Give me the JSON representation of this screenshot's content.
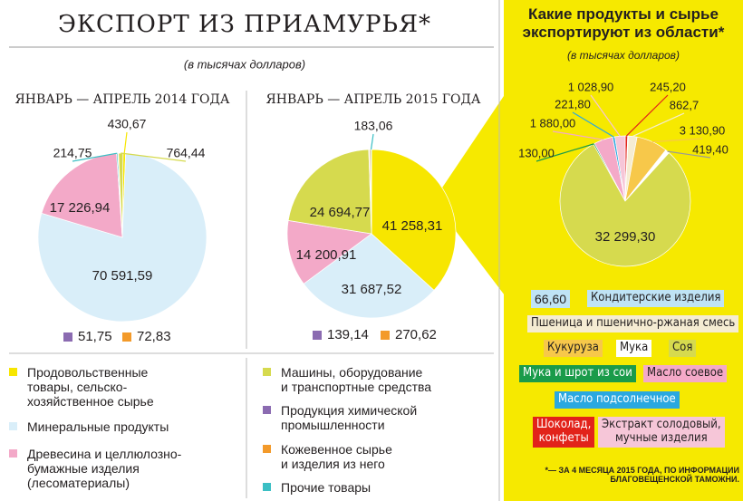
{
  "title": "ЭКСПОРТ ИЗ ПРИАМУРЬЯ*",
  "subtitle": "(в тысячах долларов)",
  "footnote": "*— ЗА 4 МЕСЯЦА 2015 ГОДА, ПО ИНФОРМАЦИИ\nБЛАГОВЕЩЕНСКОЙ ТАМОЖНИ.",
  "chart_data": [
    {
      "type": "pie",
      "title": "ЯНВАРЬ — АПРЕЛЬ 2014 ГОДА",
      "categories": [
        "Продовольственные\nтовары, сельско-\nхозяйственное сырье",
        "Минеральные продукты",
        "Древесина и целлюлозно-\nбумажные изделия\n(лесоматериалы)",
        "Машины, оборудование\nи транспортные средства",
        "Продукция химической\nпромышленности",
        "Кожевенное сырье\nи изделия из него",
        "Прочие товары"
      ],
      "colors": [
        "#f7e600",
        "#d9eef9",
        "#f3a9c8",
        "#d6da4e",
        "#8b6bb1",
        "#f39a2a",
        "#3bbfc4"
      ],
      "values": [
        430.67,
        70591.59,
        17226.94,
        764.44,
        51.75,
        72.83,
        214.75
      ],
      "value_labels": [
        "430,67",
        "70 591,59",
        "17 226,94",
        "764,44",
        "51,75",
        "72,83",
        "214,75"
      ]
    },
    {
      "type": "pie",
      "title": "ЯНВАРЬ — АПРЕЛЬ 2015 ГОДА",
      "colors": [
        "#f7e600",
        "#d9eef9",
        "#f3a9c8",
        "#d6da4e",
        "#8b6bb1",
        "#f39a2a",
        "#3bbfc4"
      ],
      "values": [
        41258.31,
        31687.52,
        14200.91,
        24694.77,
        139.14,
        270.62,
        183.06
      ],
      "value_labels": [
        "41 258,31",
        "31 687,52",
        "14 200,91",
        "24 694,77",
        "139,14",
        "270,62",
        "183,06"
      ]
    },
    {
      "type": "pie",
      "title": "Какие продукты и сырье\nэкспортируют из области*",
      "subtitle": "(в тысячах долларов)",
      "categories": [
        "Кондитерские изделия",
        "Пшеница и пшенично-ржаная смесь",
        "Кукуруза",
        "Мука",
        "Соя",
        "Мука и шрот из сои",
        "Масло соевое",
        "Масло подсолнечное",
        "Шоколад,\nконфеты",
        "Экстракт солодовый,\nмучные изделия"
      ],
      "colors": [
        "#bfe3f5",
        "#f5ecd2",
        "#f7c84a",
        "#ffffff",
        "#d6da4e",
        "#1a9b4a",
        "#f4a9c8",
        "#2aa8e0",
        "#e2231a",
        "#f6c6d8"
      ],
      "values": [
        66.6,
        862.7,
        3130.9,
        419.4,
        32299.3,
        130.0,
        1880.0,
        221.8,
        245.2,
        1028.9
      ],
      "value_labels": [
        "66,60",
        "862,7",
        "3 130,90",
        "419,40",
        "32 299,30",
        "130,00",
        "1 880,00",
        "221,80",
        "245,20",
        "1 028,90"
      ]
    }
  ]
}
